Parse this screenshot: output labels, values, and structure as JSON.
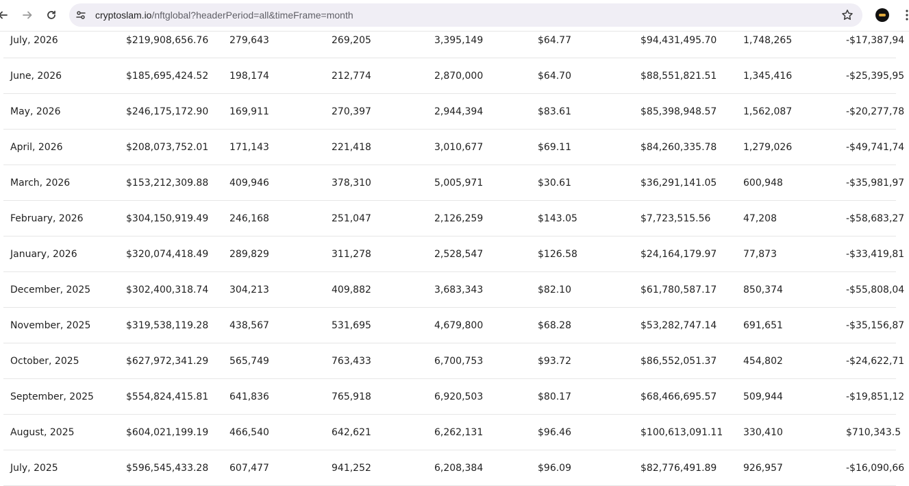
{
  "browser": {
    "url_host": "cryptoslam.io",
    "url_path": "/nftglobal?headerPeriod=all&timeFrame=month",
    "icons": {
      "back": "arrow-left-icon",
      "forward": "arrow-right-icon",
      "reload": "reload-icon",
      "site_info": "tune-icon",
      "bookmark": "star-icon"
    }
  },
  "table": {
    "rows": [
      [
        "July, 2026",
        "$219,908,656.76",
        "279,643",
        "269,205",
        "3,395,149",
        "$64.77",
        "$94,431,495.70",
        "1,748,265",
        "-$17,387,94"
      ],
      [
        "June, 2026",
        "$185,695,424.52",
        "198,174",
        "212,774",
        "2,870,000",
        "$64.70",
        "$88,551,821.51",
        "1,345,416",
        "-$25,395,95"
      ],
      [
        "May, 2026",
        "$246,175,172.90",
        "169,911",
        "270,397",
        "2,944,394",
        "$83.61",
        "$85,398,948.57",
        "1,562,087",
        "-$20,277,78"
      ],
      [
        "April, 2026",
        "$208,073,752.01",
        "171,143",
        "221,418",
        "3,010,677",
        "$69.11",
        "$84,260,335.78",
        "1,279,026",
        "-$49,741,74"
      ],
      [
        "March, 2026",
        "$153,212,309.88",
        "409,946",
        "378,310",
        "5,005,971",
        "$30.61",
        "$36,291,141.05",
        "600,948",
        "-$35,981,97"
      ],
      [
        "February, 2026",
        "$304,150,919.49",
        "246,168",
        "251,047",
        "2,126,259",
        "$143.05",
        "$7,723,515.56",
        "47,208",
        "-$58,683,27"
      ],
      [
        "January, 2026",
        "$320,074,418.49",
        "289,829",
        "311,278",
        "2,528,547",
        "$126.58",
        "$24,164,179.97",
        "77,873",
        "-$33,419,81"
      ],
      [
        "December, 2025",
        "$302,400,318.74",
        "304,213",
        "409,882",
        "3,683,343",
        "$82.10",
        "$61,780,587.17",
        "850,374",
        "-$55,808,04"
      ],
      [
        "November, 2025",
        "$319,538,119.28",
        "438,567",
        "531,695",
        "4,679,800",
        "$68.28",
        "$53,282,747.14",
        "691,651",
        "-$35,156,87"
      ],
      [
        "October, 2025",
        "$627,972,341.29",
        "565,749",
        "763,433",
        "6,700,753",
        "$93.72",
        "$86,552,051.37",
        "454,802",
        "-$24,622,71"
      ],
      [
        "September, 2025",
        "$554,824,415.81",
        "641,836",
        "765,918",
        "6,920,503",
        "$80.17",
        "$68,466,695.57",
        "509,944",
        "-$19,851,12"
      ],
      [
        "August, 2025",
        "$604,021,199.19",
        "466,540",
        "642,621",
        "6,262,131",
        "$96.46",
        "$100,613,091.11",
        "330,410",
        "$710,343.5"
      ],
      [
        "July, 2025",
        "$596,545,433.28",
        "607,477",
        "941,252",
        "6,208,384",
        "$96.09",
        "$82,776,491.89",
        "926,957",
        "-$16,090,66"
      ]
    ]
  }
}
